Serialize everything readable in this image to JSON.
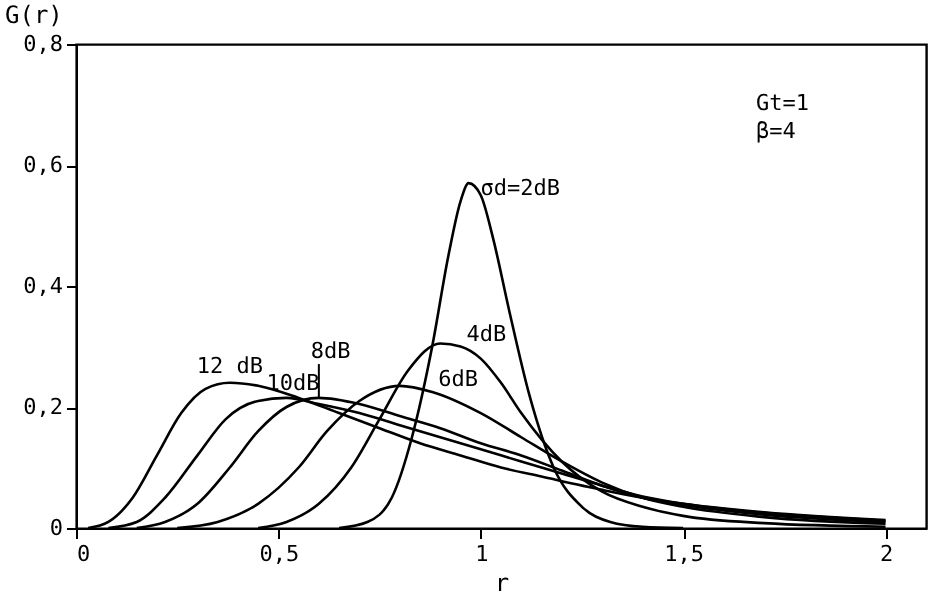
{
  "chart_data": {
    "type": "line",
    "xlabel": "r",
    "ylabel": "G(r)",
    "annotations": [
      "Gt=1",
      "β=4"
    ],
    "xlim": [
      0,
      2.1
    ],
    "ylim": [
      0,
      0.8
    ],
    "xticks": [
      0,
      {
        "value": 0.5,
        "label": "0,5"
      },
      1,
      {
        "value": 1.5,
        "label": "1,5"
      },
      2
    ],
    "yticks": [
      0,
      {
        "value": 0.2,
        "label": "0,2"
      },
      {
        "value": 0.4,
        "label": "0,4"
      },
      {
        "value": 0.6,
        "label": "0,6"
      },
      {
        "value": 0.8,
        "label": "0,8"
      }
    ],
    "grid": false,
    "line_style": "solid",
    "series": [
      {
        "name": "σd=2dB",
        "color": "#000000",
        "x": [
          0.65,
          0.72,
          0.78,
          0.83,
          0.88,
          0.92,
          0.95,
          0.97,
          1.0,
          1.03,
          1.07,
          1.12,
          1.18,
          1.25,
          1.32,
          1.4,
          1.5
        ],
        "values": [
          0,
          0.01,
          0.05,
          0.15,
          0.3,
          0.45,
          0.54,
          0.57,
          0.55,
          0.48,
          0.36,
          0.22,
          0.1,
          0.035,
          0.01,
          0.002,
          0
        ]
      },
      {
        "name": "4dB",
        "color": "#000000",
        "x": [
          0.45,
          0.52,
          0.6,
          0.68,
          0.75,
          0.82,
          0.9,
          0.95,
          1.0,
          1.05,
          1.1,
          1.2,
          1.3,
          1.4,
          1.5,
          1.7,
          2.0
        ],
        "values": [
          0,
          0.01,
          0.04,
          0.1,
          0.18,
          0.26,
          0.305,
          0.3,
          0.28,
          0.24,
          0.19,
          0.11,
          0.06,
          0.035,
          0.02,
          0.008,
          0.002
        ]
      },
      {
        "name": "6dB",
        "color": "#000000",
        "x": [
          0.25,
          0.35,
          0.45,
          0.55,
          0.62,
          0.7,
          0.8,
          0.88,
          1.0,
          1.1,
          1.2,
          1.3,
          1.4,
          1.5,
          1.7,
          2.0
        ],
        "values": [
          0,
          0.01,
          0.04,
          0.1,
          0.16,
          0.21,
          0.235,
          0.225,
          0.19,
          0.15,
          0.11,
          0.075,
          0.05,
          0.035,
          0.018,
          0.007
        ]
      },
      {
        "name": "8dB",
        "color": "#000000",
        "x": [
          0.15,
          0.22,
          0.3,
          0.38,
          0.45,
          0.52,
          0.6,
          0.7,
          0.8,
          0.9,
          1.0,
          1.1,
          1.2,
          1.3,
          1.4,
          1.5,
          1.7,
          2.0
        ],
        "values": [
          0,
          0.01,
          0.04,
          0.1,
          0.16,
          0.2,
          0.215,
          0.205,
          0.185,
          0.165,
          0.14,
          0.12,
          0.095,
          0.07,
          0.05,
          0.038,
          0.022,
          0.01
        ]
      },
      {
        "name": "10dB",
        "color": "#000000",
        "x": [
          0.08,
          0.15,
          0.22,
          0.3,
          0.37,
          0.45,
          0.52,
          0.6,
          0.7,
          0.8,
          0.9,
          1.0,
          1.1,
          1.2,
          1.3,
          1.4,
          1.5,
          1.7,
          2.0
        ],
        "values": [
          0,
          0.01,
          0.05,
          0.12,
          0.18,
          0.21,
          0.215,
          0.205,
          0.19,
          0.17,
          0.15,
          0.13,
          0.11,
          0.09,
          0.07,
          0.052,
          0.04,
          0.025,
          0.012
        ]
      },
      {
        "name": "12 dB",
        "color": "#000000",
        "x": [
          0.03,
          0.08,
          0.14,
          0.2,
          0.26,
          0.32,
          0.38,
          0.45,
          0.55,
          0.65,
          0.75,
          0.85,
          0.95,
          1.05,
          1.15,
          1.3,
          1.4,
          1.5,
          1.7,
          2.0
        ],
        "values": [
          0,
          0.01,
          0.05,
          0.12,
          0.19,
          0.23,
          0.24,
          0.235,
          0.215,
          0.19,
          0.165,
          0.14,
          0.12,
          0.1,
          0.085,
          0.063,
          0.05,
          0.04,
          0.026,
          0.013
        ]
      }
    ]
  }
}
